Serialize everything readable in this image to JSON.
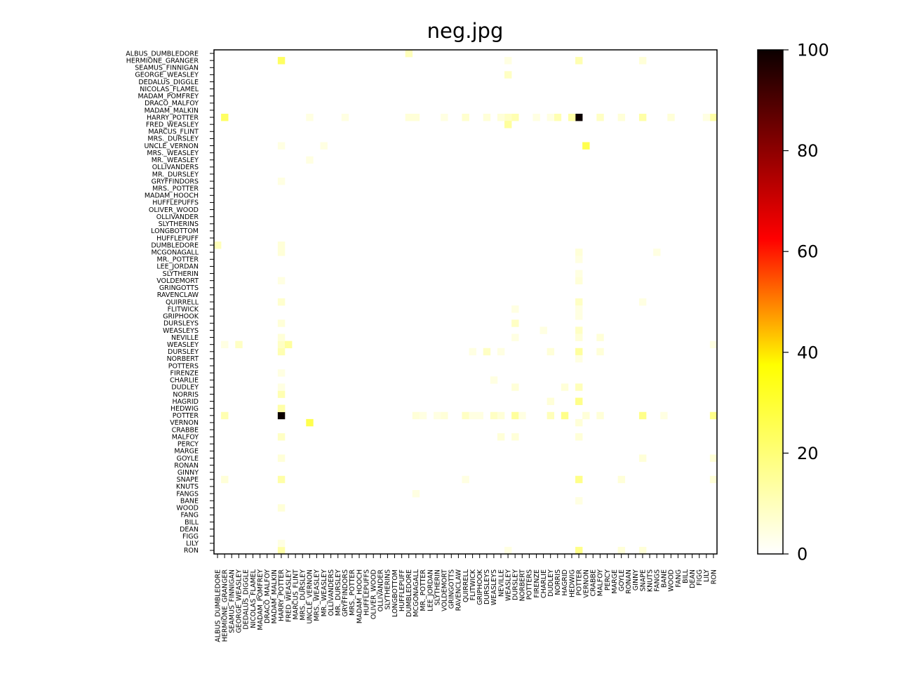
{
  "chart_data": {
    "type": "heatmap",
    "title": "neg.jpg",
    "xlabel": "",
    "ylabel": "",
    "labels": [
      "ALBUS_DUMBLEDORE",
      "HERMIONE_GRANGER",
      "SEAMUS_FINNIGAN",
      "GEORGE_WEASLEY",
      "DEDALUS_DIGGLE",
      "NICOLAS_FLAMEL",
      "MADAM_POMFREY",
      "DRACO_MALFOY",
      "MADAM_MALKIN",
      "HARRY_POTTER",
      "FRED_WEASLEY",
      "MARCUS_FLINT",
      "MRS._DURSLEY",
      "UNCLE_VERNON",
      "MRS._WEASLEY",
      "MR._WEASLEY",
      "OLLIVANDERS",
      "MR._DURSLEY",
      "GRYFFINDORS",
      "MRS._POTTER",
      "MADAM_HOOCH",
      "HUFFLEPUFFS",
      "OLIVER_WOOD",
      "OLLIVANDER",
      "SLYTHERINS",
      "LONGBOTTOM",
      "HUFFLEPUFF",
      "DUMBLEDORE",
      "MCGONAGALL",
      "MR._POTTER",
      "LEE_JORDAN",
      "SLYTHERIN",
      "VOLDEMORT",
      "GRINGOTTS",
      "RAVENCLAW",
      "QUIRRELL",
      "FLITWICK",
      "GRIPHOOK",
      "DURSLEYS",
      "WEASLEYS",
      "NEVILLE",
      "WEASLEY",
      "DURSLEY",
      "NORBERT",
      "POTTERS",
      "FIRENZE",
      "CHARLIE",
      "DUDLEY",
      "NORRIS",
      "HAGRID",
      "HEDWIG",
      "POTTER",
      "VERNON",
      "CRABBE",
      "MALFOY",
      "PERCY",
      "MARGE",
      "GOYLE",
      "RONAN",
      "GINNY",
      "SNAPE",
      "KNUTS",
      "FANGS",
      "BANE",
      "WOOD",
      "FANG",
      "BILL",
      "DEAN",
      "FIGG",
      "LILY",
      "RON"
    ],
    "vmin": 0,
    "vmax": 100,
    "colormap": "hot_r",
    "colorbar_ticks": [
      0,
      20,
      40,
      60,
      80,
      100
    ],
    "cells": [
      [
        1,
        9,
        16
      ],
      [
        9,
        1,
        16
      ],
      [
        51,
        9,
        100
      ],
      [
        9,
        51,
        100
      ],
      [
        13,
        52,
        18
      ],
      [
        52,
        13,
        18
      ],
      [
        1,
        51,
        8
      ],
      [
        51,
        1,
        8
      ],
      [
        9,
        50,
        9
      ],
      [
        50,
        9,
        9
      ],
      [
        9,
        60,
        9
      ],
      [
        60,
        9,
        9
      ],
      [
        9,
        70,
        9
      ],
      [
        70,
        9,
        9
      ],
      [
        9,
        48,
        8
      ],
      [
        48,
        9,
        8
      ],
      [
        9,
        42,
        8
      ],
      [
        42,
        9,
        8
      ],
      [
        9,
        41,
        6
      ],
      [
        41,
        9,
        6
      ],
      [
        10,
        41,
        10
      ],
      [
        41,
        10,
        10
      ],
      [
        9,
        35,
        5
      ],
      [
        35,
        9,
        5
      ],
      [
        9,
        38,
        4
      ],
      [
        38,
        9,
        4
      ],
      [
        9,
        40,
        4
      ],
      [
        40,
        9,
        4
      ],
      [
        9,
        47,
        3
      ],
      [
        47,
        9,
        3
      ],
      [
        9,
        27,
        4
      ],
      [
        27,
        9,
        4
      ],
      [
        9,
        28,
        4
      ],
      [
        28,
        9,
        4
      ],
      [
        9,
        54,
        6
      ],
      [
        54,
        9,
        6
      ],
      [
        9,
        57,
        4
      ],
      [
        57,
        9,
        4
      ],
      [
        9,
        64,
        4
      ],
      [
        64,
        9,
        4
      ],
      [
        9,
        69,
        3
      ],
      [
        69,
        9,
        3
      ],
      [
        9,
        13,
        3
      ],
      [
        13,
        9,
        3
      ],
      [
        9,
        18,
        3
      ],
      [
        18,
        9,
        3
      ],
      [
        9,
        32,
        3
      ],
      [
        32,
        9,
        3
      ],
      [
        9,
        45,
        3
      ],
      [
        45,
        9,
        3
      ],
      [
        1,
        60,
        4
      ],
      [
        60,
        1,
        4
      ],
      [
        1,
        41,
        3
      ],
      [
        41,
        1,
        3
      ],
      [
        0,
        27,
        7
      ],
      [
        27,
        0,
        7
      ],
      [
        3,
        41,
        6
      ],
      [
        41,
        3,
        6
      ],
      [
        51,
        28,
        4
      ],
      [
        28,
        51,
        4
      ],
      [
        51,
        35,
        6
      ],
      [
        35,
        51,
        6
      ],
      [
        51,
        39,
        6
      ],
      [
        39,
        51,
        6
      ],
      [
        51,
        40,
        4
      ],
      [
        40,
        51,
        4
      ],
      [
        51,
        42,
        10
      ],
      [
        42,
        51,
        10
      ],
      [
        51,
        47,
        7
      ],
      [
        47,
        51,
        7
      ],
      [
        51,
        49,
        12
      ],
      [
        49,
        51,
        12
      ],
      [
        51,
        54,
        4
      ],
      [
        54,
        51,
        4
      ],
      [
        51,
        60,
        12
      ],
      [
        60,
        51,
        12
      ],
      [
        51,
        70,
        12
      ],
      [
        70,
        51,
        12
      ],
      [
        51,
        32,
        4
      ],
      [
        32,
        51,
        4
      ],
      [
        51,
        36,
        3
      ],
      [
        36,
        51,
        3
      ],
      [
        51,
        29,
        3
      ],
      [
        29,
        51,
        3
      ],
      [
        51,
        31,
        3
      ],
      [
        31,
        51,
        3
      ],
      [
        51,
        37,
        3
      ],
      [
        37,
        51,
        3
      ],
      [
        51,
        43,
        3
      ],
      [
        43,
        51,
        3
      ],
      [
        51,
        52,
        4
      ],
      [
        52,
        51,
        4
      ],
      [
        51,
        63,
        3
      ],
      [
        63,
        51,
        3
      ],
      [
        42,
        38,
        6
      ],
      [
        38,
        42,
        6
      ],
      [
        42,
        40,
        3
      ],
      [
        40,
        42,
        3
      ],
      [
        42,
        47,
        4
      ],
      [
        47,
        42,
        4
      ],
      [
        42,
        54,
        4
      ],
      [
        54,
        42,
        4
      ],
      [
        49,
        47,
        4
      ],
      [
        47,
        49,
        4
      ],
      [
        60,
        70,
        4
      ],
      [
        70,
        60,
        4
      ],
      [
        60,
        35,
        3
      ],
      [
        35,
        60,
        3
      ],
      [
        60,
        57,
        4
      ],
      [
        57,
        60,
        4
      ],
      [
        70,
        57,
        4
      ],
      [
        57,
        70,
        4
      ],
      [
        70,
        41,
        3
      ],
      [
        41,
        70,
        3
      ],
      [
        50,
        9,
        9
      ],
      [
        13,
        15,
        3
      ],
      [
        15,
        13,
        3
      ],
      [
        39,
        46,
        3
      ],
      [
        46,
        39,
        3
      ],
      [
        40,
        54,
        4
      ],
      [
        54,
        40,
        4
      ],
      [
        28,
        62,
        3
      ],
      [
        62,
        28,
        3
      ],
      [
        36,
        42,
        3
      ],
      [
        42,
        36,
        3
      ]
    ]
  }
}
